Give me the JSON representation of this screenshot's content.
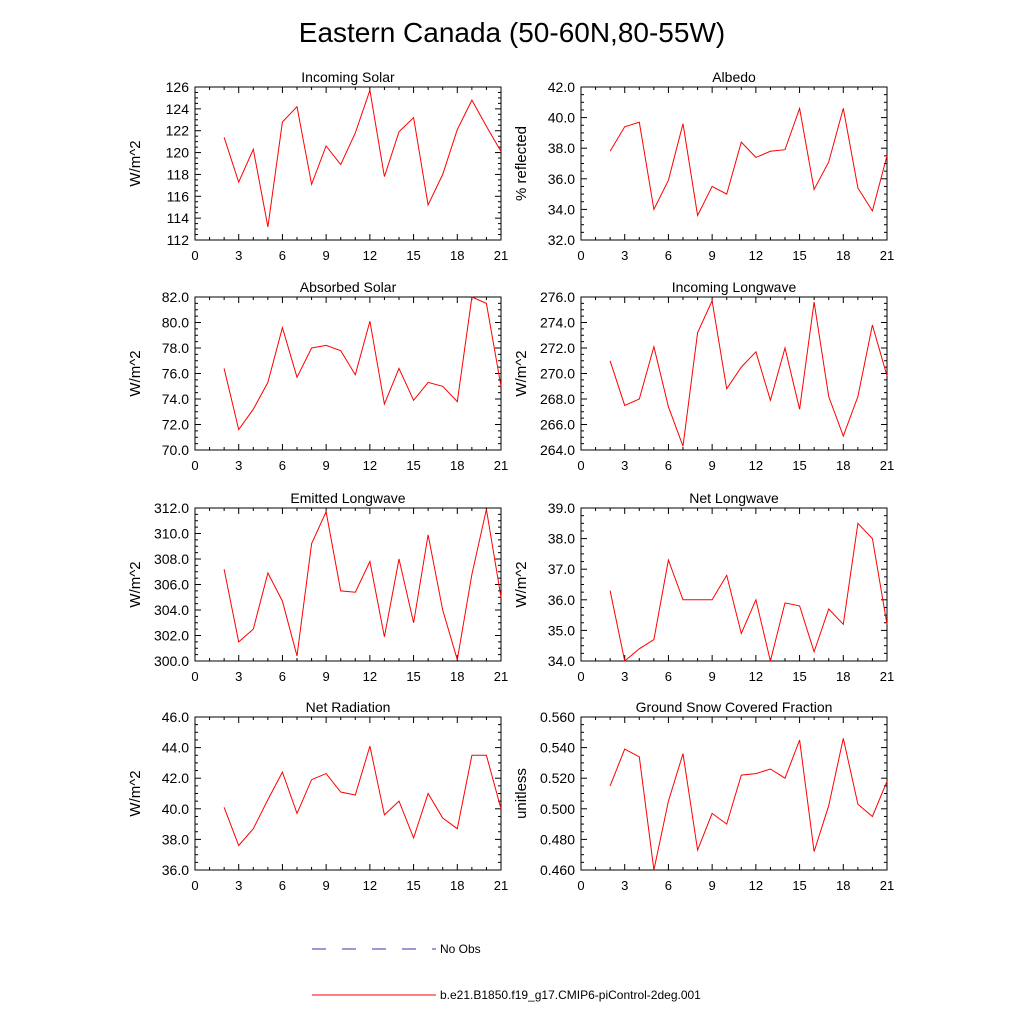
{
  "title": "Eastern Canada (50-60N,80-55W)",
  "colors": {
    "model": "#ff0000",
    "obs": "#3333aa",
    "axis": "#000000"
  },
  "legend": {
    "obs_label": "No Obs",
    "model_label": "b.e21.B1850.f19_g17.CMIP6-piControl-2deg.001"
  },
  "chart_data": [
    {
      "type": "line",
      "title": "Incoming Solar",
      "ylabel": "W/m^2",
      "xlim": [
        0,
        21
      ],
      "ylim": [
        112,
        126
      ],
      "xticks": [
        0,
        3,
        6,
        9,
        12,
        15,
        18,
        21
      ],
      "yticks": [
        112,
        114,
        116,
        118,
        120,
        122,
        124,
        126
      ],
      "ydecimals": 0,
      "x": [
        2,
        3,
        4,
        5,
        6,
        7,
        8,
        9,
        10,
        11,
        12,
        13,
        14,
        15,
        16,
        17,
        18,
        19,
        20,
        21
      ],
      "series": [
        {
          "name": "b.e21.B1850.f19_g17.CMIP6-piControl-2deg.001",
          "values": [
            121.4,
            117.3,
            120.3,
            113.2,
            122.8,
            124.2,
            117.1,
            120.6,
            118.9,
            121.8,
            125.7,
            117.8,
            121.9,
            123.2,
            115.2,
            118.0,
            122.1,
            124.8,
            122.4,
            120.1
          ]
        }
      ]
    },
    {
      "type": "line",
      "title": "Albedo",
      "ylabel": "% reflected",
      "xlim": [
        0,
        21
      ],
      "ylim": [
        32.0,
        42.0
      ],
      "xticks": [
        0,
        3,
        6,
        9,
        12,
        15,
        18,
        21
      ],
      "yticks": [
        32.0,
        34.0,
        36.0,
        38.0,
        40.0,
        42.0
      ],
      "ydecimals": 1,
      "x": [
        2,
        3,
        4,
        5,
        6,
        7,
        8,
        9,
        10,
        11,
        12,
        13,
        14,
        15,
        16,
        17,
        18,
        19,
        20,
        21
      ],
      "series": [
        {
          "name": "b.e21.B1850.f19_g17.CMIP6-piControl-2deg.001",
          "values": [
            37.8,
            39.4,
            39.7,
            34.0,
            35.9,
            39.6,
            33.6,
            35.5,
            35.0,
            38.4,
            37.4,
            37.8,
            37.9,
            40.6,
            35.3,
            37.1,
            40.6,
            35.4,
            33.9,
            37.5
          ]
        }
      ]
    },
    {
      "type": "line",
      "title": "Absorbed Solar",
      "ylabel": "W/m^2",
      "xlim": [
        0,
        21
      ],
      "ylim": [
        70.0,
        82.0
      ],
      "xticks": [
        0,
        3,
        6,
        9,
        12,
        15,
        18,
        21
      ],
      "yticks": [
        70.0,
        72.0,
        74.0,
        76.0,
        78.0,
        80.0,
        82.0
      ],
      "ydecimals": 1,
      "x": [
        2,
        3,
        4,
        5,
        6,
        7,
        8,
        9,
        10,
        11,
        12,
        13,
        14,
        15,
        16,
        17,
        18,
        19,
        20,
        21
      ],
      "series": [
        {
          "name": "b.e21.B1850.f19_g17.CMIP6-piControl-2deg.001",
          "values": [
            76.4,
            71.6,
            73.2,
            75.3,
            79.6,
            75.7,
            78.0,
            78.2,
            77.8,
            75.9,
            80.1,
            73.6,
            76.4,
            73.9,
            75.3,
            75.0,
            73.8,
            82.0,
            81.5,
            75.0
          ]
        }
      ]
    },
    {
      "type": "line",
      "title": "Incoming Longwave",
      "ylabel": "W/m^2",
      "xlim": [
        0,
        21
      ],
      "ylim": [
        264.0,
        276.0
      ],
      "xticks": [
        0,
        3,
        6,
        9,
        12,
        15,
        18,
        21
      ],
      "yticks": [
        264.0,
        266.0,
        268.0,
        270.0,
        272.0,
        274.0,
        276.0
      ],
      "ydecimals": 1,
      "x": [
        2,
        3,
        4,
        5,
        6,
        7,
        8,
        9,
        10,
        11,
        12,
        13,
        14,
        15,
        16,
        17,
        18,
        19,
        20,
        21
      ],
      "series": [
        {
          "name": "b.e21.B1850.f19_g17.CMIP6-piControl-2deg.001",
          "values": [
            271.0,
            267.5,
            268.0,
            272.1,
            267.4,
            264.3,
            273.2,
            275.7,
            268.8,
            270.5,
            271.7,
            267.9,
            272.0,
            267.2,
            275.6,
            268.2,
            265.1,
            268.2,
            273.8,
            269.8
          ]
        }
      ]
    },
    {
      "type": "line",
      "title": "Emitted Longwave",
      "ylabel": "W/m^2",
      "xlim": [
        0,
        21
      ],
      "ylim": [
        300.0,
        312.0
      ],
      "xticks": [
        0,
        3,
        6,
        9,
        12,
        15,
        18,
        21
      ],
      "yticks": [
        300.0,
        302.0,
        304.0,
        306.0,
        308.0,
        310.0,
        312.0
      ],
      "ydecimals": 1,
      "x": [
        2,
        3,
        4,
        5,
        6,
        7,
        8,
        9,
        10,
        11,
        12,
        13,
        14,
        15,
        16,
        17,
        18,
        19,
        20,
        21
      ],
      "series": [
        {
          "name": "b.e21.B1850.f19_g17.CMIP6-piControl-2deg.001",
          "values": [
            307.2,
            301.5,
            302.5,
            306.9,
            304.7,
            300.4,
            309.2,
            311.7,
            305.5,
            305.4,
            307.8,
            301.9,
            308.0,
            303.0,
            309.9,
            304.0,
            300.1,
            306.8,
            311.9,
            305.0
          ]
        }
      ]
    },
    {
      "type": "line",
      "title": "Net Longwave",
      "ylabel": "W/m^2",
      "xlim": [
        0,
        21
      ],
      "ylim": [
        34.0,
        39.0
      ],
      "xticks": [
        0,
        3,
        6,
        9,
        12,
        15,
        18,
        21
      ],
      "yticks": [
        34.0,
        35.0,
        36.0,
        37.0,
        38.0,
        39.0
      ],
      "ydecimals": 1,
      "x": [
        2,
        3,
        4,
        5,
        6,
        7,
        8,
        9,
        10,
        11,
        12,
        13,
        14,
        15,
        16,
        17,
        18,
        19,
        20,
        21
      ],
      "series": [
        {
          "name": "b.e21.B1850.f19_g17.CMIP6-piControl-2deg.001",
          "values": [
            36.3,
            34.0,
            34.4,
            34.7,
            37.3,
            36.0,
            36.0,
            36.0,
            36.8,
            34.9,
            36.0,
            34.0,
            35.9,
            35.8,
            34.3,
            35.7,
            35.2,
            38.5,
            38.0,
            35.2
          ]
        }
      ]
    },
    {
      "type": "line",
      "title": "Net Radiation",
      "ylabel": "W/m^2",
      "xlim": [
        0,
        21
      ],
      "ylim": [
        36.0,
        46.0
      ],
      "xticks": [
        0,
        3,
        6,
        9,
        12,
        15,
        18,
        21
      ],
      "yticks": [
        36.0,
        38.0,
        40.0,
        42.0,
        44.0,
        46.0
      ],
      "ydecimals": 1,
      "x": [
        2,
        3,
        4,
        5,
        6,
        7,
        8,
        9,
        10,
        11,
        12,
        13,
        14,
        15,
        16,
        17,
        18,
        19,
        20,
        21
      ],
      "series": [
        {
          "name": "b.e21.B1850.f19_g17.CMIP6-piControl-2deg.001",
          "values": [
            40.1,
            37.6,
            38.7,
            40.6,
            42.4,
            39.7,
            41.9,
            42.3,
            41.1,
            40.9,
            44.1,
            39.6,
            40.5,
            38.1,
            41.0,
            39.4,
            38.7,
            43.5,
            43.5,
            40.0
          ]
        }
      ]
    },
    {
      "type": "line",
      "title": "Ground Snow Covered Fraction",
      "ylabel": "unitless",
      "xlim": [
        0,
        21
      ],
      "ylim": [
        0.46,
        0.56
      ],
      "xticks": [
        0,
        3,
        6,
        9,
        12,
        15,
        18,
        21
      ],
      "yticks": [
        0.46,
        0.48,
        0.5,
        0.52,
        0.54,
        0.56
      ],
      "ydecimals": 3,
      "x": [
        2,
        3,
        4,
        5,
        6,
        7,
        8,
        9,
        10,
        11,
        12,
        13,
        14,
        15,
        16,
        17,
        18,
        19,
        20,
        21
      ],
      "series": [
        {
          "name": "b.e21.B1850.f19_g17.CMIP6-piControl-2deg.001",
          "values": [
            0.515,
            0.539,
            0.534,
            0.46,
            0.505,
            0.536,
            0.473,
            0.497,
            0.49,
            0.522,
            0.523,
            0.526,
            0.52,
            0.545,
            0.472,
            0.502,
            0.546,
            0.503,
            0.495,
            0.518
          ]
        }
      ]
    }
  ]
}
